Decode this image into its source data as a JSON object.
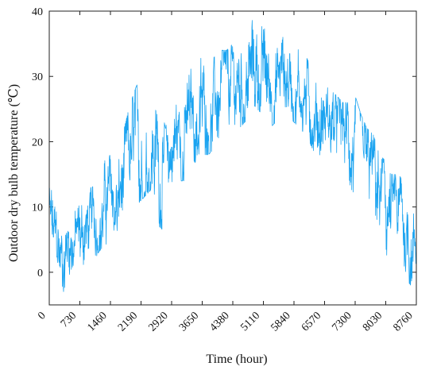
{
  "chart_data": {
    "type": "line",
    "title": "",
    "xlabel": "Time (hour)",
    "ylabel": "Outdoor dry bulb temperature (℃)",
    "xlim": [
      0,
      8760
    ],
    "ylim": [
      -5,
      40
    ],
    "x_ticks": [
      0,
      730,
      1460,
      2190,
      2920,
      3650,
      4380,
      5110,
      5840,
      6570,
      7300,
      8030,
      8760
    ],
    "y_ticks": [
      0,
      10,
      20,
      30,
      40
    ],
    "x_tick_labels": [
      "0",
      "730",
      "1460",
      "2190",
      "2920",
      "3650",
      "4380",
      "5110",
      "5840",
      "6570",
      "7300",
      "8030",
      "8760"
    ],
    "y_tick_labels": [
      "0",
      "10",
      "20",
      "30",
      "40"
    ],
    "grid": false,
    "series_color": "#1aa3f0",
    "series": [
      {
        "x": [
          0,
          146,
          292,
          438,
          584,
          730,
          876,
          1022,
          1168,
          1314,
          1460,
          1606,
          1752,
          1898,
          2044,
          2190,
          2336,
          2482,
          2628,
          2774,
          2920,
          3066,
          3212,
          3358,
          3504,
          3650,
          3796,
          3942,
          4088,
          4234,
          4380,
          4526,
          4672,
          4818,
          4964,
          5110,
          5256,
          5402,
          5548,
          5694,
          5840,
          5986,
          6132,
          6278,
          6424,
          6570,
          6716,
          6862,
          7008,
          7154,
          7300,
          7446,
          7592,
          7738,
          7884,
          8030,
          8176,
          8322,
          8468,
          8614,
          8760
        ],
        "y": [
          8,
          3,
          2,
          5,
          6,
          5,
          7,
          6,
          8,
          10,
          11,
          9,
          12,
          15,
          17,
          18,
          19,
          20,
          17,
          15,
          19,
          21,
          21,
          22,
          23,
          24,
          24,
          25,
          26,
          26,
          27,
          28,
          29,
          30,
          31,
          30,
          28,
          29,
          31,
          30,
          29,
          28,
          27,
          25,
          24,
          24,
          23,
          22,
          21,
          20,
          19,
          17,
          15,
          14,
          11,
          10,
          8,
          8,
          7,
          5,
          5
        ],
        "y_low": [
          0,
          -2,
          -4,
          -1,
          1,
          0,
          2,
          1,
          3,
          4,
          5,
          3,
          6,
          9,
          10,
          11,
          12,
          13,
          7,
          6,
          12,
          14,
          14,
          16,
          17,
          18,
          18,
          19,
          20,
          20,
          21,
          22,
          23,
          24,
          25,
          24,
          22,
          23,
          25,
          24,
          23,
          22,
          21,
          19,
          17,
          17,
          16,
          14,
          13,
          12,
          10,
          8,
          6,
          6,
          3,
          2,
          0,
          1,
          0,
          -2,
          1
        ],
        "y_high": [
          15,
          10,
          9,
          11,
          12,
          12,
          13,
          13,
          14,
          17,
          18,
          17,
          21,
          25,
          28,
          30,
          29,
          30,
          27,
          22,
          27,
          28,
          29,
          31,
          32,
          33,
          32,
          33,
          34,
          34,
          35,
          36,
          37,
          39,
          40,
          39,
          35,
          36,
          38,
          37,
          35,
          34,
          33,
          31,
          30,
          29,
          28,
          27,
          26,
          26,
          27,
          24,
          22,
          21,
          18,
          17,
          15,
          15,
          14,
          12,
          11
        ]
      }
    ]
  }
}
